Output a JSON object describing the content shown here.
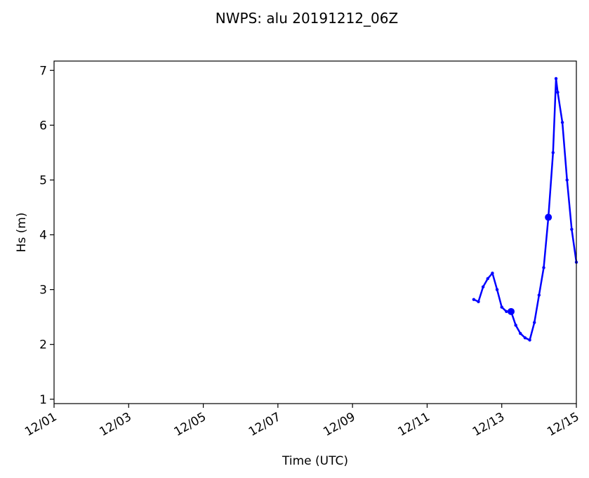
{
  "chart_data": {
    "type": "line",
    "title": "NWPS: alu 20191212_06Z",
    "xlabel": "Time (UTC)",
    "ylabel": "Hs (m)",
    "color": "#0000ff",
    "x": [
      12.25,
      12.375,
      12.5,
      12.625,
      12.75,
      12.875,
      13.0,
      13.125,
      13.25,
      13.375,
      13.5,
      13.625,
      13.75,
      13.875,
      14.0,
      14.125,
      14.25,
      14.375,
      14.455,
      14.5,
      14.625,
      14.75,
      14.875,
      15.0
    ],
    "values": [
      2.82,
      2.78,
      3.05,
      3.2,
      3.3,
      3.0,
      2.68,
      2.6,
      2.6,
      2.35,
      2.2,
      2.12,
      2.08,
      2.4,
      2.9,
      3.4,
      4.32,
      5.5,
      6.85,
      6.6,
      6.05,
      5.0,
      4.1,
      3.5
    ],
    "highlights": {
      "x": [
        13.25,
        14.25
      ],
      "values": [
        2.6,
        4.32
      ]
    },
    "xlim": [
      1,
      15
    ],
    "xticks": [
      {
        "value": 1,
        "label": "12/01"
      },
      {
        "value": 3,
        "label": "12/03"
      },
      {
        "value": 5,
        "label": "12/05"
      },
      {
        "value": 7,
        "label": "12/07"
      },
      {
        "value": 9,
        "label": "12/09"
      },
      {
        "value": 11,
        "label": "12/11"
      },
      {
        "value": 13,
        "label": "12/13"
      },
      {
        "value": 15,
        "label": "12/15"
      }
    ],
    "ylim": [
      0.92,
      7.17
    ],
    "yticks": [
      1,
      2,
      3,
      4,
      5,
      6,
      7
    ]
  }
}
